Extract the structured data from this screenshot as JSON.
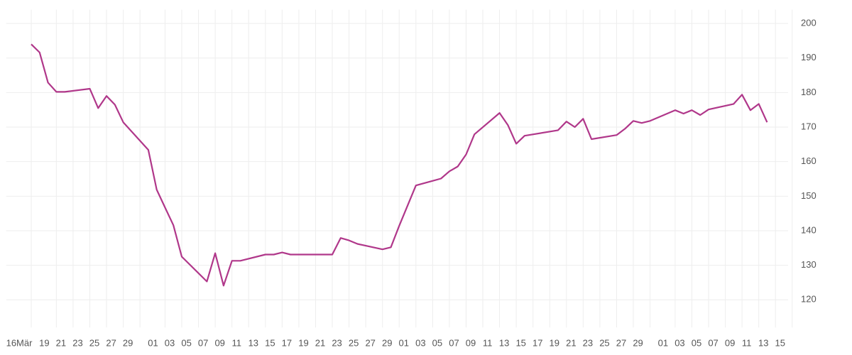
{
  "chart_data": {
    "type": "line",
    "color": "#b0378a",
    "grid": true,
    "x": [
      "03-16",
      "03-17",
      "03-18",
      "03-19",
      "03-20",
      "03-23",
      "03-24",
      "03-25",
      "03-26",
      "03-27",
      "03-30",
      "03-31",
      "04-01",
      "04-02",
      "04-03",
      "04-06",
      "04-07",
      "04-08",
      "04-09",
      "04-10",
      "04-13",
      "04-14",
      "04-15",
      "04-16",
      "04-21",
      "04-22",
      "04-23",
      "04-24",
      "04-27",
      "04-28",
      "04-29",
      "05-01",
      "05-04",
      "05-05",
      "05-06",
      "05-07",
      "05-08",
      "05-11",
      "05-12",
      "05-13",
      "05-14",
      "05-18",
      "05-19",
      "05-20",
      "05-21",
      "05-22",
      "05-25",
      "05-26",
      "05-27",
      "05-28",
      "05-29",
      "06-01",
      "06-02",
      "06-03",
      "06-04",
      "06-05",
      "06-08",
      "06-09",
      "06-10",
      "06-11",
      "06-12"
    ],
    "values": [
      194.0,
      191.6,
      182.9,
      180.2,
      180.2,
      181.1,
      175.5,
      179.0,
      176.5,
      171.4,
      163.4,
      151.9,
      146.7,
      141.6,
      132.5,
      125.3,
      133.5,
      124.1,
      131.3,
      131.3,
      133.1,
      133.1,
      133.7,
      133.1,
      133.1,
      137.9,
      137.2,
      136.2,
      134.6,
      135.2,
      141.4,
      153.1,
      155.1,
      157.2,
      158.6,
      162.1,
      167.9,
      174.1,
      170.6,
      165.2,
      167.5,
      169.1,
      171.6,
      170.0,
      172.4,
      166.5,
      167.7,
      169.5,
      171.8,
      171.2,
      171.8,
      174.9,
      173.9,
      174.9,
      173.5,
      175.1,
      176.7,
      179.4,
      174.9,
      176.7,
      171.4
    ],
    "xlim": [
      "03-13",
      "06-14"
    ],
    "xticks": [
      {
        "value": "03-16",
        "label": "16Mär"
      },
      {
        "value": "03-19",
        "label": "19"
      },
      {
        "value": "03-21",
        "label": "21"
      },
      {
        "value": "03-23",
        "label": "23"
      },
      {
        "value": "03-25",
        "label": "25"
      },
      {
        "value": "03-27",
        "label": "27"
      },
      {
        "value": "03-29",
        "label": "29"
      },
      {
        "value": "04-01",
        "label": "01"
      },
      {
        "value": "04-03",
        "label": "03"
      },
      {
        "value": "04-05",
        "label": "05"
      },
      {
        "value": "04-07",
        "label": "07"
      },
      {
        "value": "04-09",
        "label": "09"
      },
      {
        "value": "04-11",
        "label": "11"
      },
      {
        "value": "04-13",
        "label": "13"
      },
      {
        "value": "04-15",
        "label": "15"
      },
      {
        "value": "04-17",
        "label": "17"
      },
      {
        "value": "04-19",
        "label": "19"
      },
      {
        "value": "04-21",
        "label": "21"
      },
      {
        "value": "04-23",
        "label": "23"
      },
      {
        "value": "04-25",
        "label": "25"
      },
      {
        "value": "04-27",
        "label": "27"
      },
      {
        "value": "04-29",
        "label": "29"
      },
      {
        "value": "05-01",
        "label": "01"
      },
      {
        "value": "05-03",
        "label": "03"
      },
      {
        "value": "05-05",
        "label": "05"
      },
      {
        "value": "05-07",
        "label": "07"
      },
      {
        "value": "05-09",
        "label": "09"
      },
      {
        "value": "05-11",
        "label": "11"
      },
      {
        "value": "05-13",
        "label": "13"
      },
      {
        "value": "05-15",
        "label": "15"
      },
      {
        "value": "05-17",
        "label": "17"
      },
      {
        "value": "05-19",
        "label": "19"
      },
      {
        "value": "05-21",
        "label": "21"
      },
      {
        "value": "05-23",
        "label": "23"
      },
      {
        "value": "05-25",
        "label": "25"
      },
      {
        "value": "05-27",
        "label": "27"
      },
      {
        "value": "05-29",
        "label": "29"
      },
      {
        "value": "06-01",
        "label": "01"
      },
      {
        "value": "06-03",
        "label": "03"
      },
      {
        "value": "06-05",
        "label": "05"
      },
      {
        "value": "06-07",
        "label": "07"
      },
      {
        "value": "06-09",
        "label": "09"
      },
      {
        "value": "06-11",
        "label": "11"
      },
      {
        "value": "06-13",
        "label": "13"
      },
      {
        "value": "06-15",
        "label": "15"
      }
    ],
    "ylim": [
      112,
      204
    ],
    "yticks": [
      120,
      130,
      140,
      150,
      160,
      170,
      180,
      190,
      200
    ]
  }
}
